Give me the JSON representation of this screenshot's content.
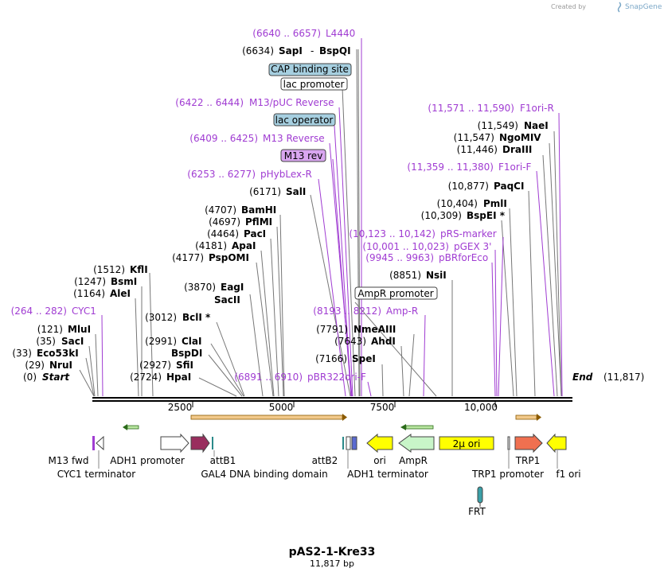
{
  "credit": {
    "prefix": "Created by",
    "brand": "SnapGene"
  },
  "plasmid": {
    "name": "pAS2-1-Kre33",
    "length": "11,817 bp"
  },
  "map_start": {
    "pos": "(0)",
    "name": "Start"
  },
  "map_end": {
    "name": "End",
    "pos": "(11,817)"
  },
  "ruler": [
    "2500",
    "5000",
    "7500",
    "10,000"
  ],
  "sites": [
    {
      "pos": "(6634)",
      "name": "SapI",
      "name2": "BspQI"
    },
    {
      "pos": "(6171)",
      "name": "SalI"
    },
    {
      "pos": "(4707)",
      "name": "BamHI"
    },
    {
      "pos": "(4697)",
      "name": "PflMI"
    },
    {
      "pos": "(4464)",
      "name": "PacI"
    },
    {
      "pos": "(4181)",
      "name": "ApaI"
    },
    {
      "pos": "(4177)",
      "name": "PspOMI"
    },
    {
      "pos": "(3870)",
      "name": "EagI"
    },
    {
      "name": "SacII"
    },
    {
      "pos": "(3012)",
      "name": "BclI *"
    },
    {
      "pos": "(2991)",
      "name": "ClaI"
    },
    {
      "name": "BspDI"
    },
    {
      "pos": "(2927)",
      "name": "SfiI"
    },
    {
      "pos": "(2724)",
      "name": "HpaI"
    },
    {
      "pos": "(1512)",
      "name": "KflI"
    },
    {
      "pos": "(1247)",
      "name": "BsmI"
    },
    {
      "pos": "(1164)",
      "name": "AleI"
    },
    {
      "pos": "(121)",
      "name": "MluI"
    },
    {
      "pos": "(35)",
      "name": "SacI"
    },
    {
      "pos": "(33)",
      "name": "Eco53kI"
    },
    {
      "pos": "(29)",
      "name": "NruI"
    },
    {
      "pos": "(11,549)",
      "name": "NaeI"
    },
    {
      "pos": "(11,547)",
      "name": "NgoMIV"
    },
    {
      "pos": "(11,446)",
      "name": "DraIII"
    },
    {
      "pos": "(10,877)",
      "name": "PaqCI"
    },
    {
      "pos": "(10,404)",
      "name": "PmlI"
    },
    {
      "pos": "(10,309)",
      "name": "BspEI *"
    },
    {
      "pos": "(8851)",
      "name": "NsiI"
    },
    {
      "pos": "(7791)",
      "name": "NmeAIII"
    },
    {
      "pos": "(7643)",
      "name": "AhdI"
    },
    {
      "pos": "(7166)",
      "name": "SpeI"
    }
  ],
  "primers": [
    {
      "range": "(6640 .. 6657)",
      "name": "L4440"
    },
    {
      "range": "(6422 .. 6444)",
      "name": "M13/pUC Reverse"
    },
    {
      "range": "(6409 .. 6425)",
      "name": "M13 Reverse"
    },
    {
      "range": "(6253 .. 6277)",
      "name": "pHybLex-R"
    },
    {
      "range": "(264 .. 282)",
      "name": "CYC1"
    },
    {
      "range": "(6891 .. 6910)",
      "name": "pBR322ori-F"
    },
    {
      "range": "(8193 .. 8212)",
      "name": "Amp-R"
    },
    {
      "range": "(10,123 .. 10,142)",
      "name": "pRS-marker"
    },
    {
      "range": "(10,001 .. 10,023)",
      "name": "pGEX 3'"
    },
    {
      "range": "(9945 .. 9963)",
      "name": "pBRforEco"
    },
    {
      "range": "(11,571 .. 11,590)",
      "name": "F1ori-R"
    },
    {
      "range": "(11,359 .. 11,380)",
      "name": "F1ori-F"
    }
  ],
  "boxes": [
    "CAP binding site",
    "lac promoter",
    "lac operator",
    "M13 rev",
    "AmpR promoter"
  ],
  "features": {
    "m13fwd": "M13 fwd",
    "cyc1term": "CYC1 terminator",
    "adh1prom": "ADH1 promoter",
    "attb1": "attB1",
    "gal4": "GAL4 DNA binding domain",
    "attb2": "attB2",
    "adh1term": "ADH1 terminator",
    "ori": "ori",
    "ampr": "AmpR",
    "twomu": "2μ ori",
    "trp1prom": "TRP1 promoter",
    "trp1": "TRP1",
    "f1ori": "f1 ori",
    "frt": "FRT"
  }
}
